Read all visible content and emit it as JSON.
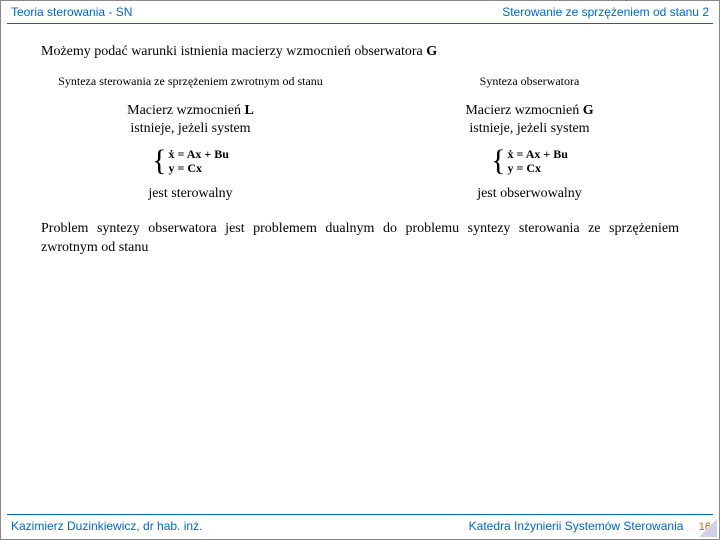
{
  "header": {
    "left": "Teoria sterowania - SN",
    "right": "Sterowanie ze sprzężeniem od stanu 2"
  },
  "title": {
    "text_before": "Możemy podać warunki istnienia macierzy wzmocnień obserwatora ",
    "symbol": "G"
  },
  "left_col": {
    "subtitle": "Synteza sterowania ze sprzężeniem zwrotnym od stanu",
    "line1a": "Macierz wzmocnień ",
    "line1sym": "L",
    "line2": "istnieje, jeżeli system",
    "eq1": "ẋ = Ax + Bu",
    "eq2": "y = Cx",
    "foot": "jest sterowalny"
  },
  "right_col": {
    "subtitle": "Synteza obserwatora",
    "line1a": "Macierz wzmocnień ",
    "line1sym": "G",
    "line2": "istnieje, jeżeli system",
    "eq1": "ẋ = Ax + Bu",
    "eq2": "y = Cx",
    "foot": "jest obserwowalny"
  },
  "problem": "Problem syntezy obserwatora jest problemem dualnym do problemu syntezy sterowania ze sprzężeniem zwrotnym od stanu",
  "footer": {
    "left": "Kazimierz Duzinkiewicz, dr hab. inż.",
    "right": "Katedra Inżynierii Systemów Sterowania",
    "page": "16"
  },
  "colors": {
    "link": "#0066cc",
    "page": "#cc6600"
  }
}
